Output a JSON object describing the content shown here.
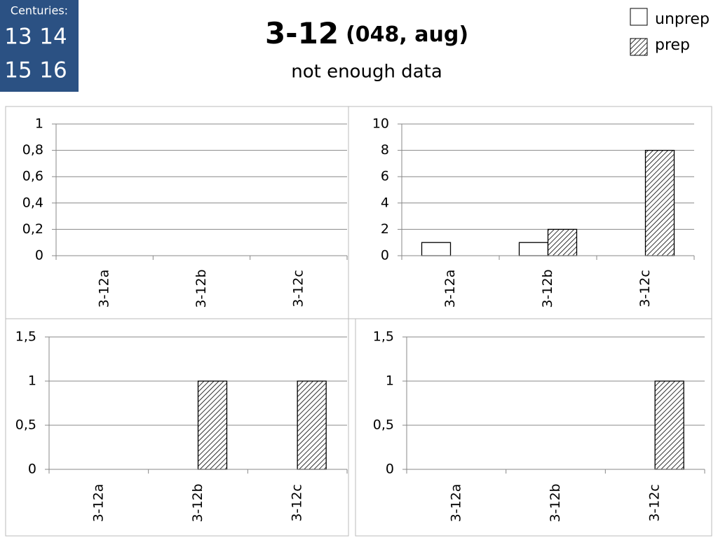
{
  "header": {
    "centuries_label": "Centuries:",
    "centuries": [
      "13",
      "14",
      "15",
      "16"
    ],
    "title": "3-12",
    "title_note": "(048, aug)",
    "subtitle": "not enough data"
  },
  "chart_data": [
    {
      "type": "bar",
      "categories": [
        "3-12a",
        "3-12b",
        "3-12c"
      ],
      "series": [
        {
          "name": "unprep",
          "color": "#ffffff",
          "values": [
            null,
            null,
            null
          ]
        },
        {
          "name": "prep",
          "color": "#ffffff",
          "pattern": "hatch",
          "values": [
            null,
            null,
            null
          ]
        }
      ],
      "ylim": [
        0,
        1
      ],
      "yticks": [
        0,
        {
          "value": 0.2,
          "label": "0,2"
        },
        {
          "value": 0.4,
          "label": "0,4"
        },
        {
          "value": 0.6,
          "label": "0,6"
        },
        {
          "value": 0.8,
          "label": "0,8"
        },
        1
      ],
      "grid": true
    },
    {
      "type": "bar",
      "categories": [
        "3-12a",
        "3-12b",
        "3-12c"
      ],
      "series": [
        {
          "color": "#ffffff",
          "values": [
            1,
            1,
            0
          ]
        },
        {
          "color": "#ffffff",
          "pattern": "hatch",
          "values": [
            0,
            2,
            8
          ]
        }
      ],
      "ylim": [
        0,
        10
      ],
      "yticks": [
        0,
        2,
        4,
        6,
        8,
        10
      ],
      "grid": true
    },
    {
      "type": "bar",
      "categories": [
        "3-12a",
        "3-12b",
        "3-12c"
      ],
      "series": [
        {
          "color": "#ffffff",
          "values": [
            0,
            0,
            0
          ]
        },
        {
          "color": "#ffffff",
          "pattern": "hatch",
          "values": [
            0,
            1,
            1
          ]
        }
      ],
      "ylim": [
        0,
        1.5
      ],
      "yticks": [
        0,
        {
          "value": 0.5,
          "label": "0,5"
        },
        1,
        {
          "value": 1.5,
          "label": "1,5"
        }
      ],
      "grid": true
    },
    {
      "type": "bar",
      "categories": [
        "3-12a",
        "3-12b",
        "3-12c"
      ],
      "series": [
        {
          "color": "#ffffff",
          "values": [
            0,
            0,
            0
          ]
        },
        {
          "color": "#ffffff",
          "pattern": "hatch",
          "values": [
            0,
            0,
            1
          ]
        }
      ],
      "ylim": [
        0,
        1.5
      ],
      "yticks": [
        0,
        {
          "value": 0.5,
          "label": "0,5"
        },
        1,
        {
          "value": 1.5,
          "label": "1,5"
        }
      ],
      "grid": true
    }
  ]
}
